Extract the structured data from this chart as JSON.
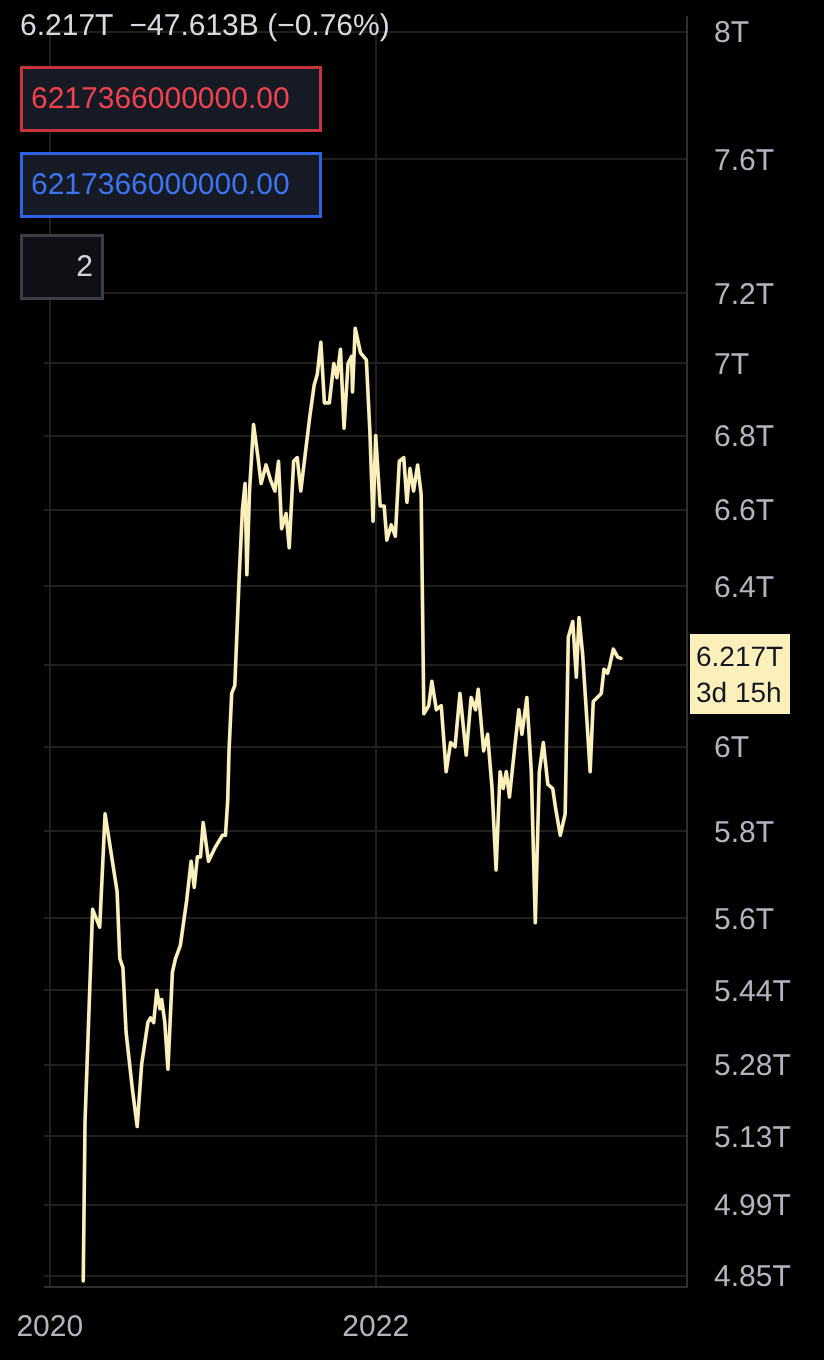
{
  "chart_data": {
    "type": "line",
    "title": "6.217T  −47.613B (−0.76%)",
    "x": [
      "2020-03-16",
      "2020-03-20",
      "2020-04-06",
      "2020-04-22",
      "2020-05-04",
      "2020-05-31",
      "2020-06-06",
      "2020-06-13",
      "2020-06-20",
      "2020-07-04",
      "2020-07-15",
      "2020-07-25",
      "2020-08-08",
      "2020-08-14",
      "2020-08-21",
      "2020-08-28",
      "2020-09-04",
      "2020-09-08",
      "2020-09-15",
      "2020-09-22",
      "2020-10-02",
      "2020-10-09",
      "2020-10-20",
      "2020-11-03",
      "2020-11-13",
      "2020-11-20",
      "2020-11-27",
      "2020-12-04",
      "2020-12-10",
      "2020-12-22",
      "2021-01-05",
      "2021-01-22",
      "2021-01-29",
      "2021-02-03",
      "2021-02-06",
      "2021-02-12",
      "2021-02-19",
      "2021-03-01",
      "2021-03-08",
      "2021-03-14",
      "2021-03-18",
      "2021-03-24",
      "2021-04-02",
      "2021-04-12",
      "2021-04-19",
      "2021-04-30",
      "2021-05-10",
      "2021-05-20",
      "2021-05-28",
      "2021-06-04",
      "2021-06-14",
      "2021-06-21",
      "2021-07-01",
      "2021-07-09",
      "2021-07-17",
      "2021-07-26",
      "2021-08-06",
      "2021-08-16",
      "2021-08-23",
      "2021-08-31",
      "2021-09-08",
      "2021-09-19",
      "2021-09-29",
      "2021-10-06",
      "2021-10-14",
      "2021-10-22",
      "2021-10-31",
      "2021-11-08",
      "2021-11-10",
      "2021-11-16",
      "2021-11-28",
      "2021-12-11",
      "2021-12-19",
      "2021-12-26",
      "2022-01-01",
      "2022-01-11",
      "2022-01-20",
      "2022-01-26",
      "2022-02-05",
      "2022-02-14",
      "2022-02-23",
      "2022-03-05",
      "2022-03-12",
      "2022-03-19",
      "2022-03-27",
      "2022-04-05",
      "2022-04-13",
      "2022-04-19",
      "2022-04-30",
      "2022-05-07",
      "2022-05-17",
      "2022-05-28",
      "2022-06-08",
      "2022-06-18",
      "2022-06-28",
      "2022-07-09",
      "2022-07-23",
      "2022-08-03",
      "2022-08-13",
      "2022-08-19",
      "2022-08-31",
      "2022-09-09",
      "2022-09-19",
      "2022-09-28",
      "2022-10-07",
      "2022-10-14",
      "2022-10-21",
      "2022-10-28",
      "2022-11-08",
      "2022-11-18",
      "2022-11-25",
      "2022-12-06",
      "2022-12-16",
      "2022-12-25",
      "2023-01-03",
      "2023-01-12",
      "2023-01-22",
      "2023-02-02",
      "2023-02-09",
      "2023-02-19",
      "2023-03-02",
      "2023-03-09",
      "2023-03-19",
      "2023-03-27",
      "2023-04-02",
      "2023-04-10",
      "2023-04-20",
      "2023-04-27",
      "2023-05-04",
      "2023-05-13",
      "2023-05-22",
      "2023-05-28",
      "2023-06-05",
      "2023-06-10",
      "2023-06-18",
      "2023-06-28",
      "2023-07-05"
    ],
    "series": [
      {
        "color": "#fbf0bc",
        "values": [
          4.84,
          5.16,
          5.62,
          5.58,
          5.84,
          5.66,
          5.51,
          5.49,
          5.35,
          5.23,
          5.15,
          5.28,
          5.37,
          5.38,
          5.37,
          5.44,
          5.4,
          5.42,
          5.37,
          5.27,
          5.48,
          5.51,
          5.54,
          5.64,
          5.73,
          5.67,
          5.74,
          5.74,
          5.82,
          5.73,
          5.76,
          5.79,
          5.79,
          5.87,
          5.99,
          6.13,
          6.15,
          6.43,
          6.6,
          6.67,
          6.43,
          6.65,
          6.83,
          6.74,
          6.67,
          6.72,
          6.68,
          6.65,
          6.73,
          6.55,
          6.59,
          6.5,
          6.73,
          6.74,
          6.65,
          6.74,
          6.85,
          6.94,
          6.97,
          7.06,
          6.89,
          6.89,
          7.0,
          6.96,
          7.04,
          6.82,
          7.0,
          7.02,
          6.92,
          7.1,
          7.03,
          7.01,
          6.81,
          6.57,
          6.8,
          6.61,
          6.61,
          6.52,
          6.56,
          6.53,
          6.73,
          6.74,
          6.62,
          6.71,
          6.65,
          6.72,
          6.64,
          6.08,
          6.1,
          6.16,
          6.09,
          6.1,
          5.94,
          6.01,
          6.0,
          6.13,
          5.98,
          6.12,
          6.09,
          6.14,
          5.99,
          6.03,
          5.9,
          5.71,
          5.94,
          5.9,
          5.94,
          5.88,
          5.99,
          6.09,
          6.03,
          6.12,
          5.94,
          5.59,
          5.94,
          6.01,
          5.91,
          5.9,
          5.85,
          5.79,
          5.84,
          6.27,
          6.31,
          6.17,
          6.32,
          6.23,
          6.06,
          5.94,
          6.11,
          6.12,
          6.13,
          6.19,
          6.18,
          6.2,
          6.24,
          6.22,
          6.217
        ]
      }
    ],
    "xlim": [
      "2019-12-19",
      "2023-11-28"
    ],
    "xticks": [
      "2020",
      "2022"
    ],
    "ylim": [
      4.83,
      8.05
    ],
    "yticks": [
      {
        "value": 4.85,
        "label": "4.85T"
      },
      {
        "value": 4.99,
        "label": "4.99T"
      },
      {
        "value": 5.13,
        "label": "5.13T"
      },
      {
        "value": 5.28,
        "label": "5.28T"
      },
      {
        "value": 5.44,
        "label": "5.44T"
      },
      {
        "value": 5.6,
        "label": "5.6T"
      },
      {
        "value": 5.8,
        "label": "5.8T"
      },
      {
        "value": 6,
        "label": "6T"
      },
      {
        "value": 6.2,
        "label": null
      },
      {
        "value": 6.4,
        "label": "6.4T"
      },
      {
        "value": 6.6,
        "label": "6.6T"
      },
      {
        "value": 6.8,
        "label": "6.8T"
      },
      {
        "value": 7,
        "label": "7T"
      },
      {
        "value": 7.2,
        "label": "7.2T"
      },
      {
        "value": 7.6,
        "label": "7.6T"
      },
      {
        "value": 8,
        "label": "8T"
      }
    ],
    "log": true,
    "grid": true,
    "line_style": "solid",
    "annotations": [
      "6217366000000.00",
      "6217366000000.00",
      "2",
      "6.217T\n3d 15h"
    ]
  }
}
